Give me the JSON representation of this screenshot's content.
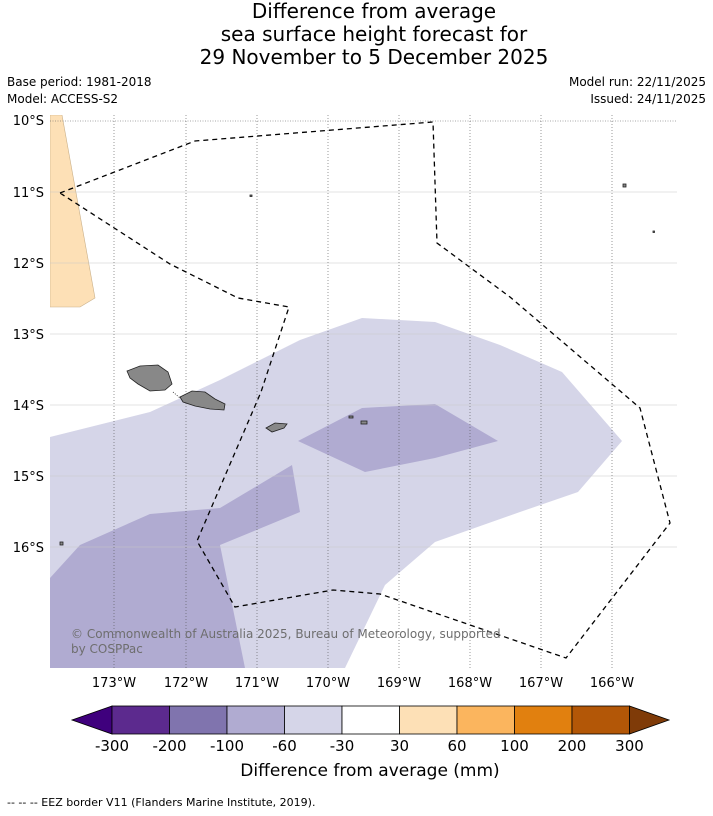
{
  "title": {
    "line1": "Difference from average",
    "line2": "sea surface height forecast for",
    "line3": "29 November to 5 December 2025"
  },
  "meta": {
    "base_period": "Base period: 1981-2018",
    "model": "Model: ACCESS-S2",
    "model_run": "Model run: 22/11/2025",
    "issued": "Issued: 24/11/2025"
  },
  "map": {
    "lat_labels": [
      "10°S",
      "11°S",
      "12°S",
      "13°S",
      "14°S",
      "15°S",
      "16°S"
    ],
    "lon_labels": [
      "173°W",
      "172°W",
      "171°W",
      "170°W",
      "169°W",
      "168°W",
      "167°W",
      "166°W"
    ],
    "copyright_line1": "© Commonwealth of Australia 2025, Bureau of Meteorology, supported",
    "copyright_line2": "by COSPPac",
    "colors": {
      "light_purple": "#d5d5e8",
      "mid_purple": "#b0abd1",
      "light_orange": "#fde0b6",
      "land": "#888888"
    }
  },
  "colorbar": {
    "tick_labels": [
      "-300",
      "-200",
      "-100",
      "-60",
      "-30",
      "30",
      "60",
      "100",
      "200",
      "300"
    ],
    "colors": [
      "#3f007d",
      "#5c2a8e",
      "#8074ae",
      "#b0abd1",
      "#d5d5e8",
      "#ffffff",
      "#fde0b6",
      "#fbb55e",
      "#e1800f",
      "#b35707",
      "#7f3b08"
    ],
    "title": "Difference from average (mm)"
  },
  "footnote": "--  --  -- EEZ border V11 (Flanders Marine Institute, 2019)."
}
